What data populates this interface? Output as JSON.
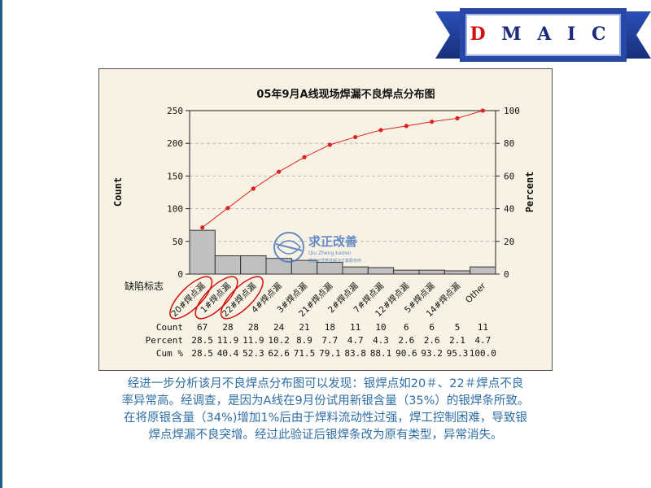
{
  "header": {
    "badge": {
      "letters": [
        "D",
        "M",
        "A",
        "I",
        "C"
      ]
    }
  },
  "watermark": {
    "title": "求正改善",
    "subtitle": "Qiu Zheng kaizen",
    "tagline": "精益运营整体解决方案服务商"
  },
  "chart_data": {
    "type": "pareto",
    "title": "05年9月A线现场焊漏不良焊点分布图",
    "ylabel_left": "Count",
    "ylabel_right": "Percent",
    "category_axis_label": "缺陷标志",
    "left_axis": {
      "min": 0,
      "max": 250,
      "ticks": [
        0,
        50,
        100,
        150,
        200,
        250
      ]
    },
    "right_axis": {
      "min": 0,
      "max": 100,
      "ticks": [
        0,
        20,
        40,
        60,
        80,
        100
      ]
    },
    "categories": [
      "20#焊点漏",
      "1#焊点漏",
      "22#焊点漏",
      "4#焊点漏",
      "3#焊点漏",
      "21#焊点漏",
      "2#焊点漏",
      "7#焊点漏",
      "12#焊点漏",
      "5#焊点漏",
      "14#焊点漏",
      "Other"
    ],
    "counts": [
      67,
      28,
      28,
      24,
      21,
      18,
      11,
      10,
      6,
      6,
      5,
      11
    ],
    "percent": [
      "28.5",
      "11.9",
      "11.9",
      "10.2",
      "8.9",
      "7.7",
      "4.7",
      "4.3",
      "2.6",
      "2.6",
      "2.1",
      "4.7"
    ],
    "cum_percent": [
      "28.5",
      "40.4",
      "52.3",
      "62.6",
      "71.5",
      "79.1",
      "83.8",
      "88.1",
      "90.6",
      "93.2",
      "95.3",
      "100.0"
    ],
    "cum_values": [
      28.5,
      40.4,
      52.3,
      62.6,
      71.5,
      79.1,
      83.8,
      88.1,
      90.6,
      93.2,
      95.3,
      100.0
    ],
    "table_row_labels": [
      "Count",
      "Percent",
      "Cum %"
    ],
    "highlighted_categories": [
      "20#焊点漏",
      "1#焊点漏",
      "22#焊点漏"
    ],
    "grid": true,
    "colors": {
      "bar": "#c0c0c0",
      "line": "#e02020",
      "grid": "#bbbbbb",
      "highlight": "#d01010"
    }
  },
  "note": {
    "lines": [
      "经进一步分析该月不良焊点分布图可以发现：银焊点如20＃、22＃焊点不良",
      "率异常高。经调查，是因为A线在9月份试用新银含量（35%）的银焊条所致。",
      "在将原银含量（34%)增加1%后由于焊料流动性过强，焊工控制困难，导致银",
      "焊点焊漏不良突增。经过此验证后银焊条改为原有类型，异常消失。"
    ]
  }
}
